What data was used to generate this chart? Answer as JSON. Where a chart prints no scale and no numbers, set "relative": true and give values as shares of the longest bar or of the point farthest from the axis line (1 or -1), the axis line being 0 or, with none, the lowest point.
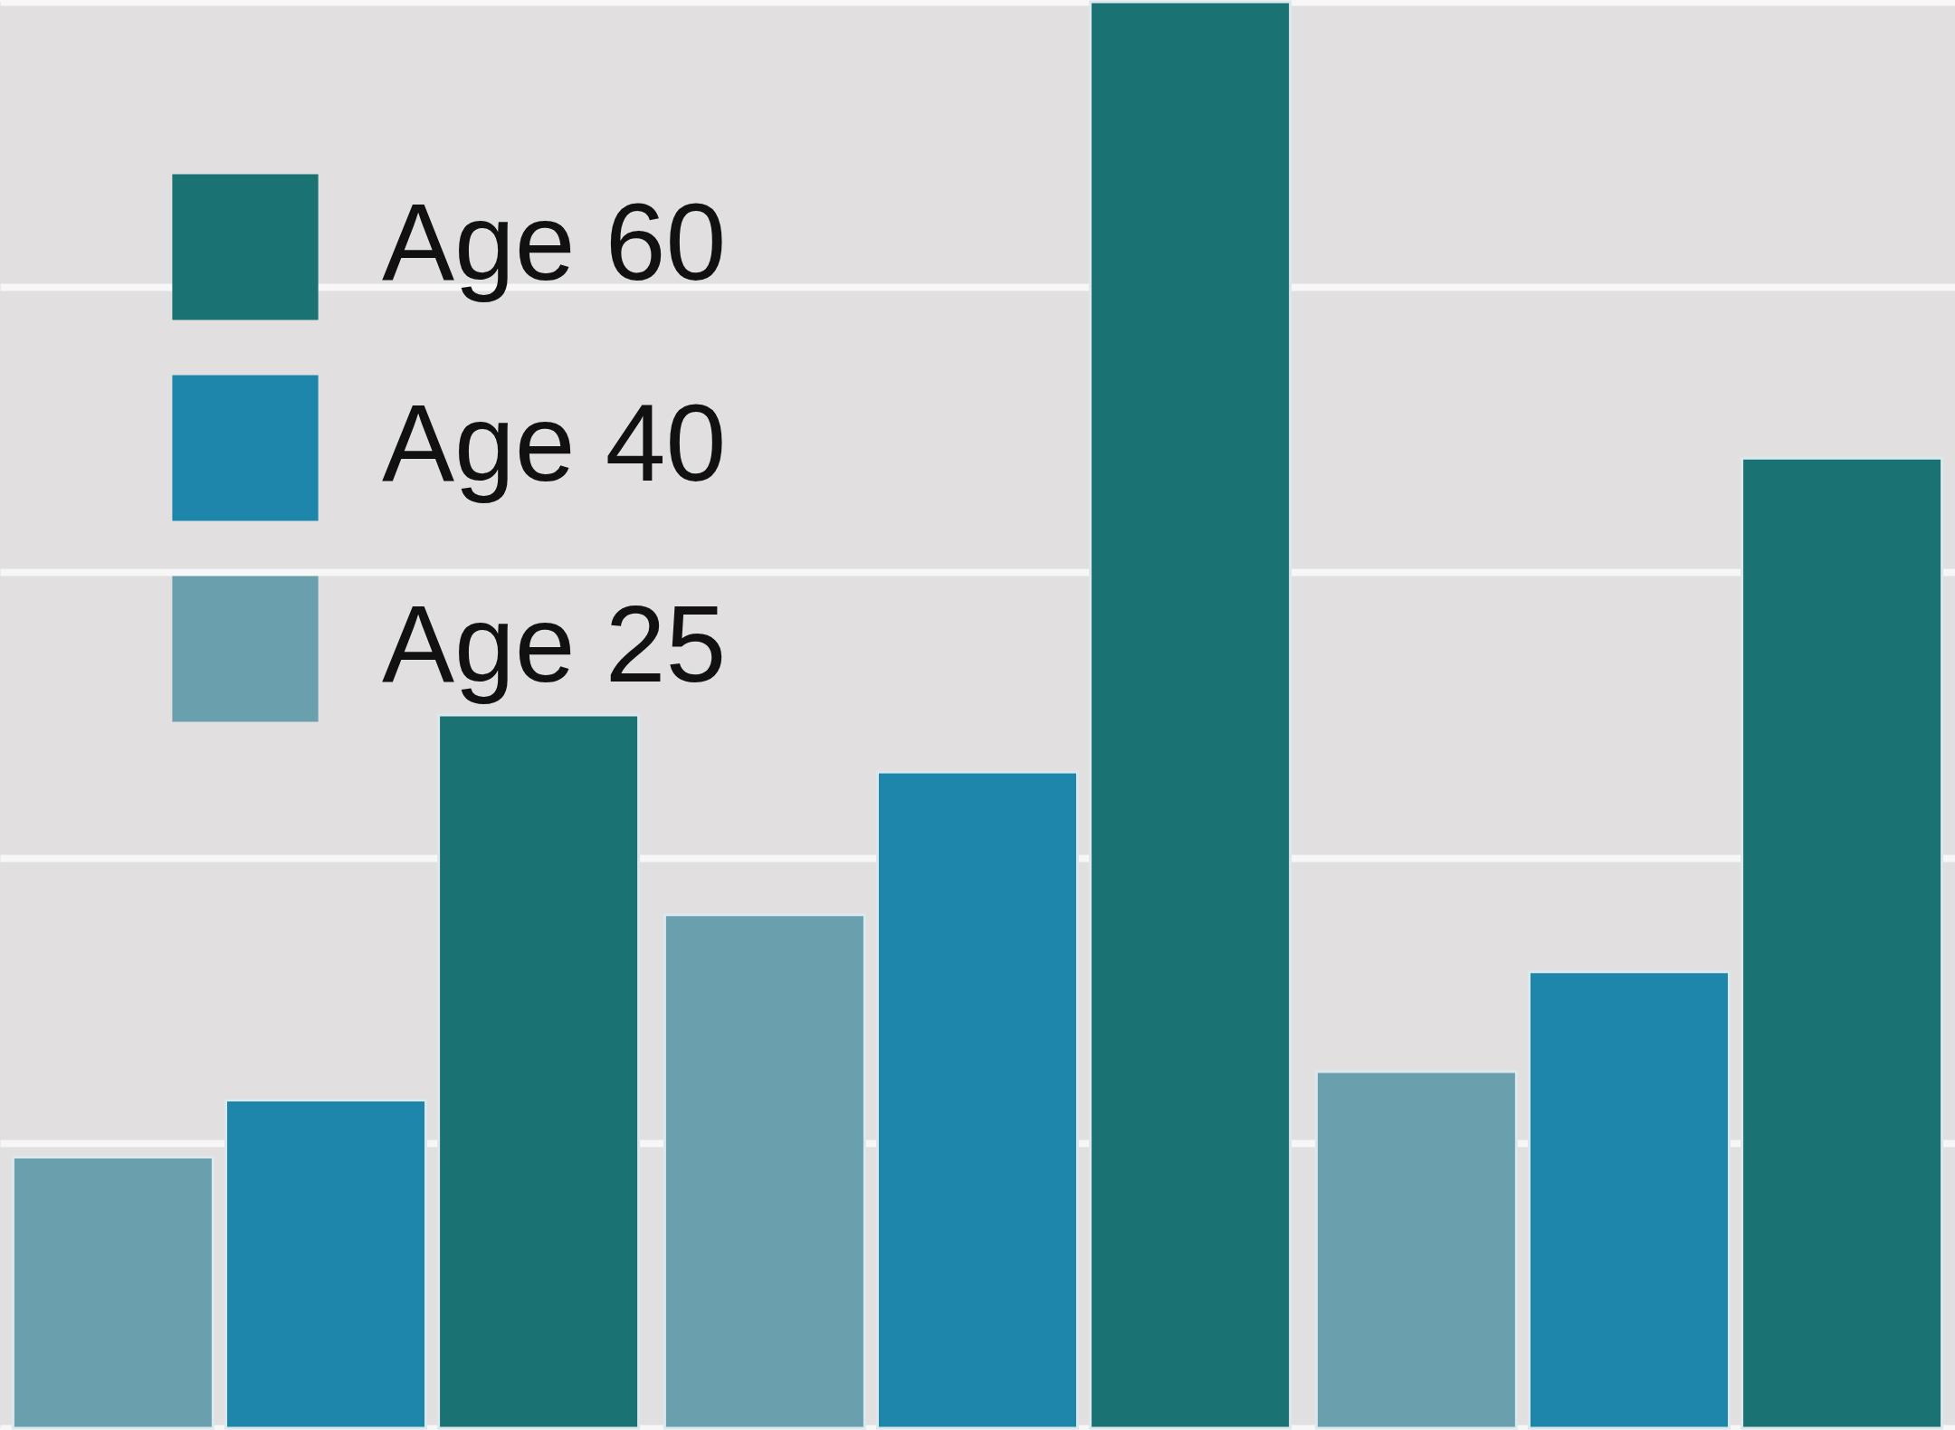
{
  "chart_data": {
    "type": "bar",
    "relative": true,
    "categories": [
      null,
      null,
      null
    ],
    "series": [
      {
        "name": "Age 25",
        "color": "#6a9fae",
        "values": [
          0.19,
          0.36,
          0.25
        ]
      },
      {
        "name": "Age 40",
        "color": "#1f86ab",
        "values": [
          0.23,
          0.46,
          0.32
        ]
      },
      {
        "name": "Age 60",
        "color": "#1b7272",
        "values": [
          0.5,
          1,
          0.68
        ]
      }
    ],
    "grid": "y",
    "legend": "top left"
  }
}
